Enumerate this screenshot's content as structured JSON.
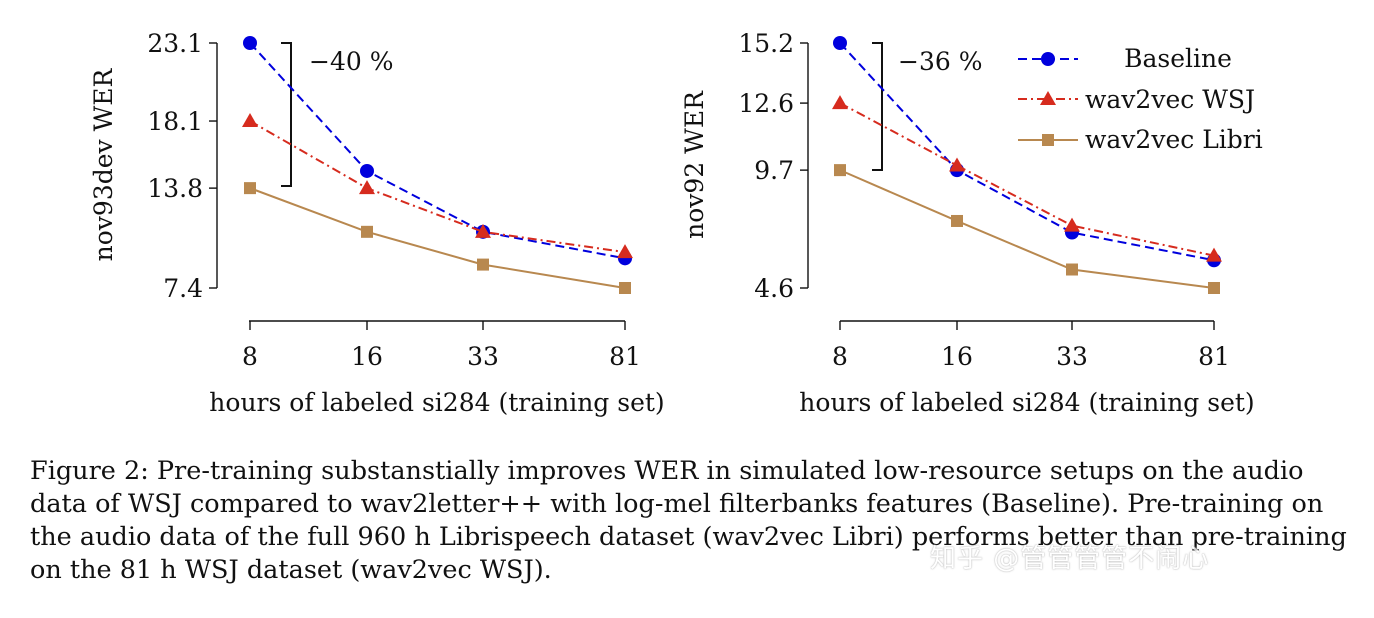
{
  "chart_data": [
    {
      "type": "line",
      "xlabel": "hours of labeled si284 (training set)",
      "ylabel": "nov93dev WER",
      "x_ticks": [
        "8",
        "16",
        "33",
        "81"
      ],
      "y_ticks": [
        "7.4",
        "13.8",
        "18.1",
        "23.1"
      ],
      "ylim": [
        7.4,
        23.1
      ],
      "annotation": "−40 %",
      "series": [
        {
          "name": "Baseline",
          "color": "#0000dd",
          "marker": "circle",
          "dash": "dashed",
          "values": [
            23.1,
            14.9,
            11.0,
            9.3
          ]
        },
        {
          "name": "wav2vec WSJ",
          "color": "#d62b1e",
          "marker": "triangle",
          "dash": "dashdot",
          "values": [
            18.1,
            13.8,
            11.0,
            9.7
          ]
        },
        {
          "name": "wav2vec Libri",
          "color": "#b8884f",
          "marker": "square",
          "dash": "solid",
          "values": [
            13.8,
            11.0,
            8.9,
            7.4
          ]
        }
      ]
    },
    {
      "type": "line",
      "xlabel": "hours of labeled si284 (training set)",
      "ylabel": "nov92 WER",
      "x_ticks": [
        "8",
        "16",
        "33",
        "81"
      ],
      "y_ticks": [
        "4.6",
        "9.7",
        "12.6",
        "15.2"
      ],
      "ylim": [
        4.6,
        15.2
      ],
      "annotation": "−36 %",
      "legend_position": "top-right",
      "series": [
        {
          "name": "Baseline",
          "color": "#0000dd",
          "marker": "circle",
          "dash": "dashed",
          "values": [
            15.2,
            9.7,
            7.0,
            5.8
          ]
        },
        {
          "name": "wav2vec WSJ",
          "color": "#d62b1e",
          "marker": "triangle",
          "dash": "dashdot",
          "values": [
            12.6,
            9.9,
            7.3,
            6.0
          ]
        },
        {
          "name": "wav2vec Libri",
          "color": "#b8884f",
          "marker": "square",
          "dash": "solid",
          "values": [
            9.7,
            7.5,
            5.4,
            4.6
          ]
        }
      ]
    }
  ],
  "caption": {
    "lines": [
      "Figure 2: Pre-training substanstially improves WER in simulated low-resource setups on the audio",
      "data of WSJ compared to wav2letter++ with log-mel filterbanks features (Baseline). Pre-training on",
      "the audio data of the full 960 h Librispeech dataset (wav2vec Libri) performs better than pre-training",
      "on the 81 h WSJ dataset (wav2vec WSJ)."
    ]
  },
  "watermark": "知乎 @管管管管不闹心"
}
